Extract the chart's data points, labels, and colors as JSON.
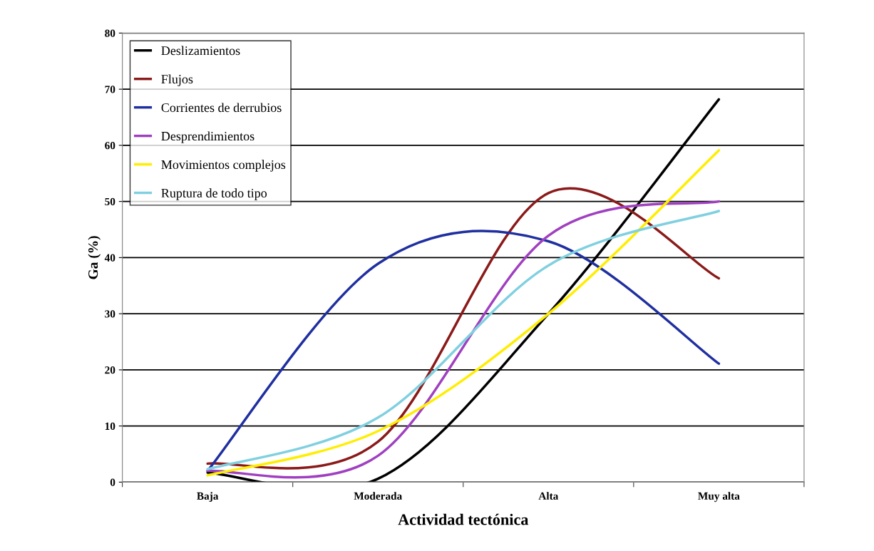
{
  "chart_data": {
    "type": "line",
    "xlabel": "Actividad tectónica",
    "ylabel": "Ga (%)",
    "categories": [
      "Baja",
      "Moderada",
      "Alta",
      "Muy alta"
    ],
    "series": [
      {
        "name": "Deslizamientos",
        "color": "#000000",
        "values": [
          1.7,
          0.6,
          30,
          68.2
        ]
      },
      {
        "name": "Flujos",
        "color": "#8b1a1a",
        "values": [
          3.3,
          7.2,
          51.5,
          36.3
        ]
      },
      {
        "name": "Corrientes de derrubios",
        "color": "#1f2fa0",
        "values": [
          2,
          38.9,
          42.9,
          21.1
        ]
      },
      {
        "name": "Desprendimientos",
        "color": "#a040c0",
        "values": [
          2,
          4.7,
          43.9,
          50
        ]
      },
      {
        "name": "Movimientos complejos",
        "color": "#ffee00",
        "values": [
          1.2,
          9.1,
          30,
          59.1
        ]
      },
      {
        "name": "Ruptura de todo tipo",
        "color": "#80d0e0",
        "values": [
          2.3,
          11.5,
          38.6,
          48.3
        ]
      }
    ],
    "ylim": [
      0,
      80
    ],
    "yticks": [
      0,
      10,
      20,
      30,
      40,
      50,
      60,
      70,
      80
    ],
    "grid": "y",
    "legend": "top left",
    "marker": "none",
    "line_style": "solid"
  }
}
